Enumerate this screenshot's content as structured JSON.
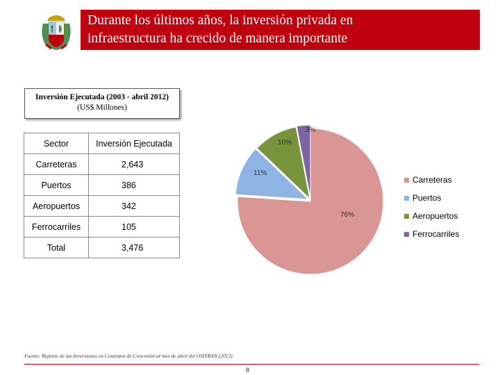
{
  "header": {
    "title_line1": "Durante los últimos años, la inversión privada en",
    "title_line2": "infraestructura ha crecido de manera importante"
  },
  "caption": {
    "line1": "Inversión Ejecutada (2003 - abril 2012)",
    "line2": "(US$ Millones)"
  },
  "table": {
    "headers": [
      "Sector",
      "Inversión Ejecutada"
    ],
    "rows": [
      [
        "Carreteras",
        "2,643"
      ],
      [
        "Puertos",
        "386"
      ],
      [
        "Aeropuertos",
        "342"
      ],
      [
        "Ferrocarriles",
        "105"
      ],
      [
        "Total",
        "3,476"
      ]
    ]
  },
  "chart_data": {
    "type": "pie",
    "categories": [
      "Carreteras",
      "Puertos",
      "Aeropuertos",
      "Ferrocarriles"
    ],
    "values": [
      2643,
      386,
      342,
      105
    ],
    "data_labels": [
      "76%",
      "11%",
      "10%",
      "3%"
    ],
    "colors": [
      "#d99694",
      "#8db4e2",
      "#77933c",
      "#8064a2"
    ],
    "legend_position": "right"
  },
  "footer": {
    "source": "Fuente: Reporte de las Inversiones en Contratos de Concesión al mes de abril del OSITRAN (2012).",
    "page": "8"
  }
}
